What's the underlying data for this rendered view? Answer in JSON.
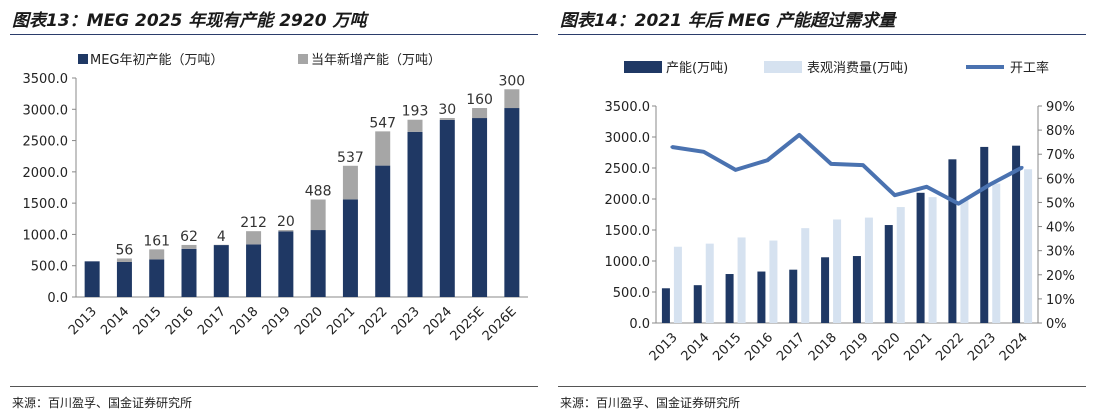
{
  "left": {
    "title": "图表13：MEG 2025 年现有产能 2920 万吨",
    "source": "来源：百川盈孚、国金证券研究所"
  },
  "right": {
    "title": "图表14：2021 年后 MEG 产能超过需求量",
    "source": "来源：百川盈孚、国金证券研究所"
  },
  "colors": {
    "navy": "#1f3864",
    "gray": "#a6a6a6",
    "light_blue": "#d6e2f0",
    "line_blue": "#4a72b0"
  },
  "chart_data": [
    {
      "type": "bar",
      "stacked": true,
      "title": "图表13：MEG 2025 年现有产能 2920 万吨",
      "categories": [
        "2013",
        "2014",
        "2015",
        "2016",
        "2017",
        "2018",
        "2019",
        "2020",
        "2021",
        "2022",
        "2023",
        "2024",
        "2025E",
        "2026E"
      ],
      "series": [
        {
          "name": "MEG年初产能（万吨）",
          "values": [
            570,
            560,
            600,
            770,
            830,
            840,
            1050,
            1070,
            1560,
            2100,
            2640,
            2830,
            2860,
            3020
          ]
        },
        {
          "name": "当年新增产能（万吨）",
          "values": [
            0,
            56,
            161,
            62,
            4,
            212,
            20,
            488,
            537,
            547,
            193,
            30,
            160,
            300
          ]
        }
      ],
      "data_labels": [
        "",
        "56",
        "161",
        "62",
        "4",
        "212",
        "20",
        "488",
        "537",
        "547",
        "193",
        "30",
        "160",
        "300"
      ],
      "ylim": [
        0,
        3500
      ],
      "yticks": [
        "0.0",
        "500.0",
        "1000.0",
        "1500.0",
        "2000.0",
        "2500.0",
        "3000.0",
        "3500.0"
      ],
      "ytick_values": [
        0,
        500,
        1000,
        1500,
        2000,
        2500,
        3000,
        3500
      ],
      "legend_position": "top"
    },
    {
      "type": "bar",
      "title": "图表14：2021 年后 MEG 产能超过需求量",
      "categories": [
        "2013",
        "2014",
        "2015",
        "2016",
        "2017",
        "2018",
        "2019",
        "2020",
        "2021",
        "2022",
        "2023",
        "2024"
      ],
      "series": [
        {
          "name": "产能(万吨)",
          "type": "bar",
          "axis": "left",
          "values": [
            560,
            610,
            790,
            830,
            860,
            1060,
            1080,
            1580,
            2100,
            2640,
            2840,
            2860
          ]
        },
        {
          "name": "表观消费量(万吨)",
          "type": "bar",
          "axis": "left",
          "values": [
            1230,
            1280,
            1380,
            1330,
            1530,
            1670,
            1700,
            1870,
            2030,
            2000,
            2250,
            2480
          ]
        },
        {
          "name": "开工率",
          "type": "line",
          "axis": "right",
          "values": [
            0.73,
            0.71,
            0.635,
            0.675,
            0.78,
            0.66,
            0.655,
            0.53,
            0.565,
            0.495,
            0.575,
            0.645
          ]
        }
      ],
      "ylim": [
        0,
        3500
      ],
      "yticks": [
        "0.0",
        "500.0",
        "1000.0",
        "1500.0",
        "2000.0",
        "2500.0",
        "3000.0",
        "3500.0"
      ],
      "ytick_values": [
        0,
        500,
        1000,
        1500,
        2000,
        2500,
        3000,
        3500
      ],
      "y2lim": [
        0,
        0.9
      ],
      "y2ticks": [
        "0%",
        "10%",
        "20%",
        "30%",
        "40%",
        "50%",
        "60%",
        "70%",
        "80%",
        "90%"
      ],
      "y2tick_values": [
        0,
        0.1,
        0.2,
        0.3,
        0.4,
        0.5,
        0.6,
        0.7,
        0.8,
        0.9
      ],
      "legend_position": "top"
    }
  ]
}
